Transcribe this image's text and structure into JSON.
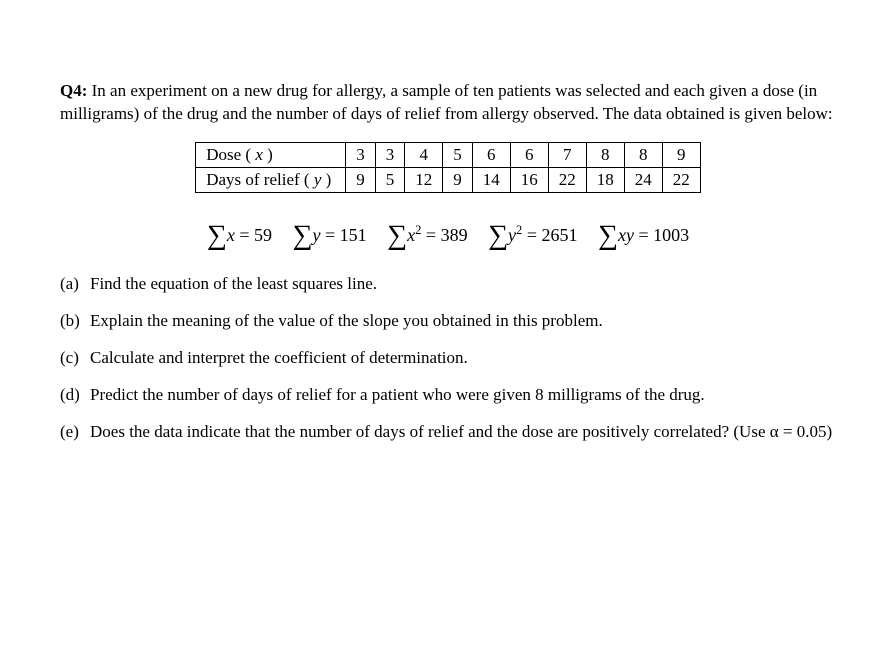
{
  "question": {
    "label": "Q4:",
    "intro": "In an experiment on a new drug for allergy, a sample of ten patients was selected and each given a dose (in milligrams) of the drug and the number of days of relief from allergy observed. The data obtained is given below:"
  },
  "table": {
    "row1_label_pre": "Dose ( ",
    "row1_var": "x",
    "row1_label_post": " )",
    "row2_label_pre": "Days of relief ( ",
    "row2_var": "y",
    "row2_label_post": " )",
    "dose": [
      "3",
      "3",
      "4",
      "5",
      "6",
      "6",
      "7",
      "8",
      "8",
      "9"
    ],
    "relief": [
      "9",
      "5",
      "12",
      "9",
      "14",
      "16",
      "22",
      "18",
      "24",
      "22"
    ]
  },
  "sums": {
    "sx": "59",
    "sy": "151",
    "sx2": "389",
    "sy2": "2651",
    "sxy": "1003"
  },
  "parts": {
    "a_label": "(a)",
    "a_text": "Find the equation of the least squares line.",
    "b_label": "(b)",
    "b_text": "Explain the meaning of the value of the slope you obtained in this problem.",
    "c_label": "(c)",
    "c_text": "Calculate and interpret the coefficient of determination.",
    "d_label": "(d)",
    "d_text": "Predict the number of days of relief for a patient who were given 8 milligrams of the drug.",
    "e_label": "(e)",
    "e_text": "Does the data indicate that the number of days of relief and the dose are positively correlated? (Use α = 0.05)"
  }
}
